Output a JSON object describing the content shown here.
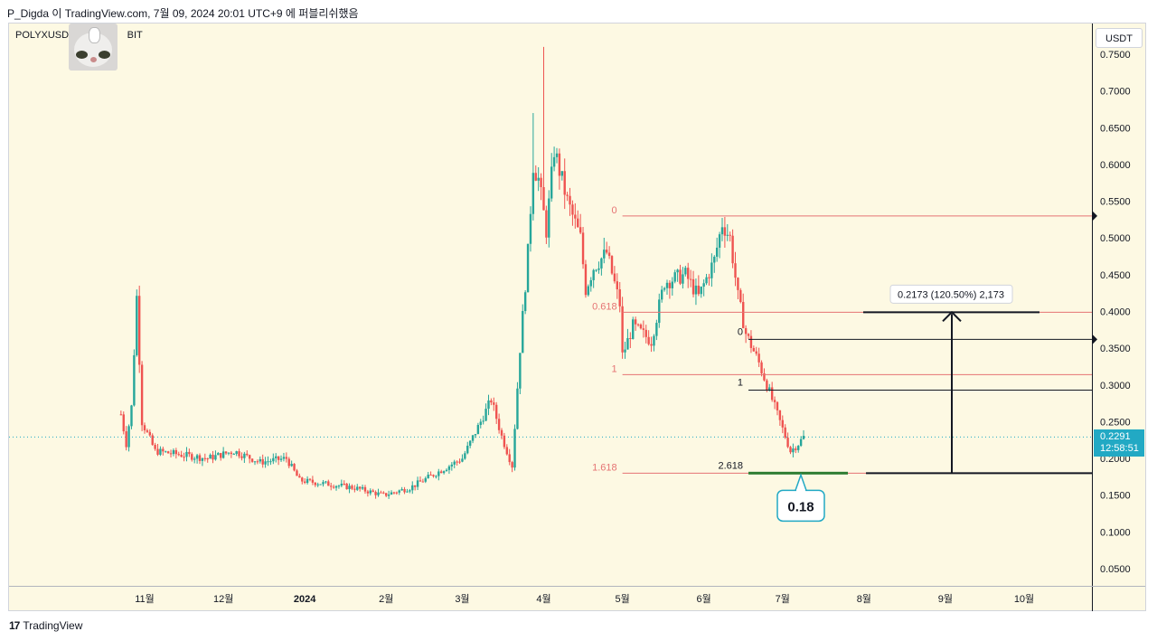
{
  "header": {
    "publisher_line": "P_Digda 이 TradingView.com, 7월 09, 2024 20:01 UTC+9 에 퍼블리쉬했음"
  },
  "symbol_label": "POLYXUSDT,",
  "symbol_suffix": "BIT",
  "currency_button": "USDT",
  "current_price": {
    "value": "0.2291",
    "countdown": "12:58:51",
    "color": "#22a9c4"
  },
  "logo": {
    "mark": "17",
    "text": "TradingView"
  },
  "colors": {
    "up": "#26a69a",
    "down": "#ef5350",
    "fib": "#e57373",
    "background": "#fdf9e3"
  },
  "chart_data": {
    "type": "candlestick",
    "ylim": [
      0,
      0.77
    ],
    "y_ticks": [
      "0.0500",
      "0.1000",
      "0.1500",
      "0.2000",
      "0.2500",
      "0.3000",
      "0.3500",
      "0.4000",
      "0.4500",
      "0.5000",
      "0.5500",
      "0.6000",
      "0.6500",
      "0.7000",
      "0.7500"
    ],
    "x_ticks": [
      {
        "label": "11월",
        "date": "2023-11-01"
      },
      {
        "label": "12월",
        "date": "2023-12-01"
      },
      {
        "label": "2024",
        "date": "2024-01-01"
      },
      {
        "label": "2월",
        "date": "2024-02-01"
      },
      {
        "label": "3월",
        "date": "2024-03-01"
      },
      {
        "label": "4월",
        "date": "2024-04-01"
      },
      {
        "label": "5월",
        "date": "2024-05-01"
      },
      {
        "label": "6월",
        "date": "2024-06-01"
      },
      {
        "label": "7월",
        "date": "2024-07-01"
      },
      {
        "label": "8월",
        "date": "2024-08-01"
      },
      {
        "label": "9월",
        "date": "2024-09-01"
      },
      {
        "label": "10월",
        "date": "2024-10-01"
      }
    ],
    "price_path": [
      [
        "2023-10-23",
        0.26
      ],
      [
        "2023-10-25",
        0.22
      ],
      [
        "2023-10-27",
        0.27
      ],
      [
        "2023-10-29",
        0.42
      ],
      [
        "2023-10-31",
        0.25
      ],
      [
        "2023-11-05",
        0.21
      ],
      [
        "2023-11-15",
        0.205
      ],
      [
        "2023-11-25",
        0.2
      ],
      [
        "2023-12-05",
        0.21
      ],
      [
        "2023-12-15",
        0.195
      ],
      [
        "2023-12-25",
        0.2
      ],
      [
        "2023-12-30",
        0.17
      ],
      [
        "2024-01-10",
        0.165
      ],
      [
        "2024-01-20",
        0.16
      ],
      [
        "2024-01-31",
        0.15
      ],
      [
        "2024-02-10",
        0.16
      ],
      [
        "2024-02-20",
        0.18
      ],
      [
        "2024-03-01",
        0.2
      ],
      [
        "2024-03-08",
        0.25
      ],
      [
        "2024-03-12",
        0.28
      ],
      [
        "2024-03-16",
        0.23
      ],
      [
        "2024-03-20",
        0.19
      ],
      [
        "2024-03-23",
        0.35
      ],
      [
        "2024-03-26",
        0.48
      ],
      [
        "2024-03-28",
        0.6
      ],
      [
        "2024-03-30",
        0.58
      ],
      [
        "2024-04-02",
        0.51
      ],
      [
        "2024-04-05",
        0.62
      ],
      [
        "2024-04-10",
        0.55
      ],
      [
        "2024-04-15",
        0.5
      ],
      [
        "2024-04-17",
        0.43
      ],
      [
        "2024-04-20",
        0.46
      ],
      [
        "2024-04-25",
        0.48
      ],
      [
        "2024-04-30",
        0.41
      ],
      [
        "2024-05-01",
        0.34
      ],
      [
        "2024-05-05",
        0.38
      ],
      [
        "2024-05-12",
        0.36
      ],
      [
        "2024-05-17",
        0.44
      ],
      [
        "2024-05-25",
        0.45
      ],
      [
        "2024-05-30",
        0.42
      ],
      [
        "2024-06-05",
        0.47
      ],
      [
        "2024-06-08",
        0.52
      ],
      [
        "2024-06-11",
        0.5
      ],
      [
        "2024-06-14",
        0.42
      ],
      [
        "2024-06-17",
        0.37
      ],
      [
        "2024-06-22",
        0.33
      ],
      [
        "2024-06-28",
        0.27
      ],
      [
        "2024-07-01",
        0.24
      ],
      [
        "2024-07-04",
        0.21
      ],
      [
        "2024-07-07",
        0.22
      ],
      [
        "2024-07-09",
        0.2291
      ]
    ],
    "spikes": [
      {
        "date": "2023-10-29",
        "high": 0.43
      },
      {
        "date": "2024-04-01",
        "high": 0.76
      },
      {
        "date": "2024-03-28",
        "high": 0.67
      }
    ],
    "fib_left": {
      "levels": [
        {
          "label": "0",
          "price": 0.53
        },
        {
          "label": "0.618",
          "price": 0.399
        },
        {
          "label": "1",
          "price": 0.314
        },
        {
          "label": "1.618",
          "price": 0.18
        }
      ]
    },
    "fib_right": {
      "levels": [
        {
          "label": "0",
          "price": 0.362
        },
        {
          "label": "1",
          "price": 0.293
        },
        {
          "label": "2.618",
          "price": 0.18
        }
      ]
    },
    "measure": {
      "label": "0.2173 (120.50%) 2,173",
      "from": 0.18,
      "to": 0.399
    },
    "target_callout": "0.18",
    "current_price_line": 0.2291
  }
}
